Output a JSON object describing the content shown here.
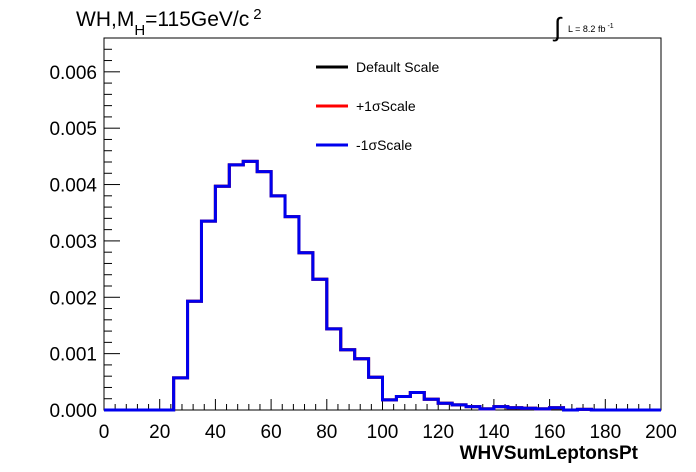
{
  "chart_data": {
    "type": "histogram",
    "title_parts": {
      "main": "WH,M",
      "sub": "H",
      "rest": "=115GeV/c",
      "sup": "2"
    },
    "lumi": {
      "integral": "∫",
      "text": "L = 8.2 fb",
      "sup": "-1"
    },
    "xlabel": "WHVSumLeptonsPt",
    "ylabel": "",
    "xlim": [
      0,
      200
    ],
    "ylim": [
      0,
      0.0066
    ],
    "x_ticks": [
      "0",
      "20",
      "40",
      "60",
      "80",
      "100",
      "120",
      "140",
      "160",
      "180",
      "200"
    ],
    "y_ticks": [
      "0.000",
      "0.001",
      "0.002",
      "0.003",
      "0.004",
      "0.005",
      "0.006"
    ],
    "bin_width": 5,
    "bin_starts": [
      0,
      5,
      10,
      15,
      20,
      25,
      30,
      35,
      40,
      45,
      50,
      55,
      60,
      65,
      70,
      75,
      80,
      85,
      90,
      95,
      100,
      105,
      110,
      115,
      120,
      125,
      130,
      135,
      140,
      145,
      150,
      155,
      160,
      165,
      170,
      175,
      180,
      185,
      190,
      195
    ],
    "series": [
      {
        "name": "Default Scale",
        "color": "#000000",
        "values": [
          0,
          0,
          0,
          0,
          0,
          0.00057,
          0.00193,
          0.00335,
          0.00397,
          0.00435,
          0.00441,
          0.00423,
          0.0038,
          0.00343,
          0.00279,
          0.00232,
          0.00144,
          0.00107,
          0.00091,
          0.00058,
          0.00018,
          0.00024,
          0.00031,
          0.00019,
          0.00012,
          9e-05,
          6e-05,
          2e-05,
          6e-05,
          4e-05,
          3e-05,
          2e-05,
          4e-05,
          0,
          1e-05,
          0,
          0,
          0,
          0,
          0
        ]
      },
      {
        "name": "+1σScale",
        "color": "#ff0000",
        "values": [
          0,
          0,
          0,
          0,
          0,
          0.00057,
          0.00193,
          0.00335,
          0.00397,
          0.00435,
          0.00441,
          0.00423,
          0.0038,
          0.00343,
          0.00279,
          0.00232,
          0.00144,
          0.00107,
          0.00091,
          0.00058,
          0.00018,
          0.00024,
          0.00031,
          0.00019,
          0.00012,
          9e-05,
          6e-05,
          2e-05,
          6e-05,
          4e-05,
          3e-05,
          2e-05,
          4e-05,
          0,
          1e-05,
          0,
          0,
          0,
          0,
          0
        ]
      },
      {
        "name": "-1σScale",
        "color": "#0000ee",
        "values": [
          0,
          0,
          0,
          0,
          0,
          0.00057,
          0.00193,
          0.00335,
          0.00397,
          0.00435,
          0.00441,
          0.00423,
          0.0038,
          0.00343,
          0.00279,
          0.00232,
          0.00144,
          0.00107,
          0.00091,
          0.00058,
          0.00018,
          0.00024,
          0.00031,
          0.00019,
          0.00012,
          9e-05,
          6e-05,
          2e-05,
          6e-05,
          4e-05,
          3e-05,
          2e-05,
          4e-05,
          0,
          1e-05,
          0,
          0,
          0,
          0,
          0
        ]
      }
    ],
    "legend_placement": "top-center",
    "grid": false
  }
}
